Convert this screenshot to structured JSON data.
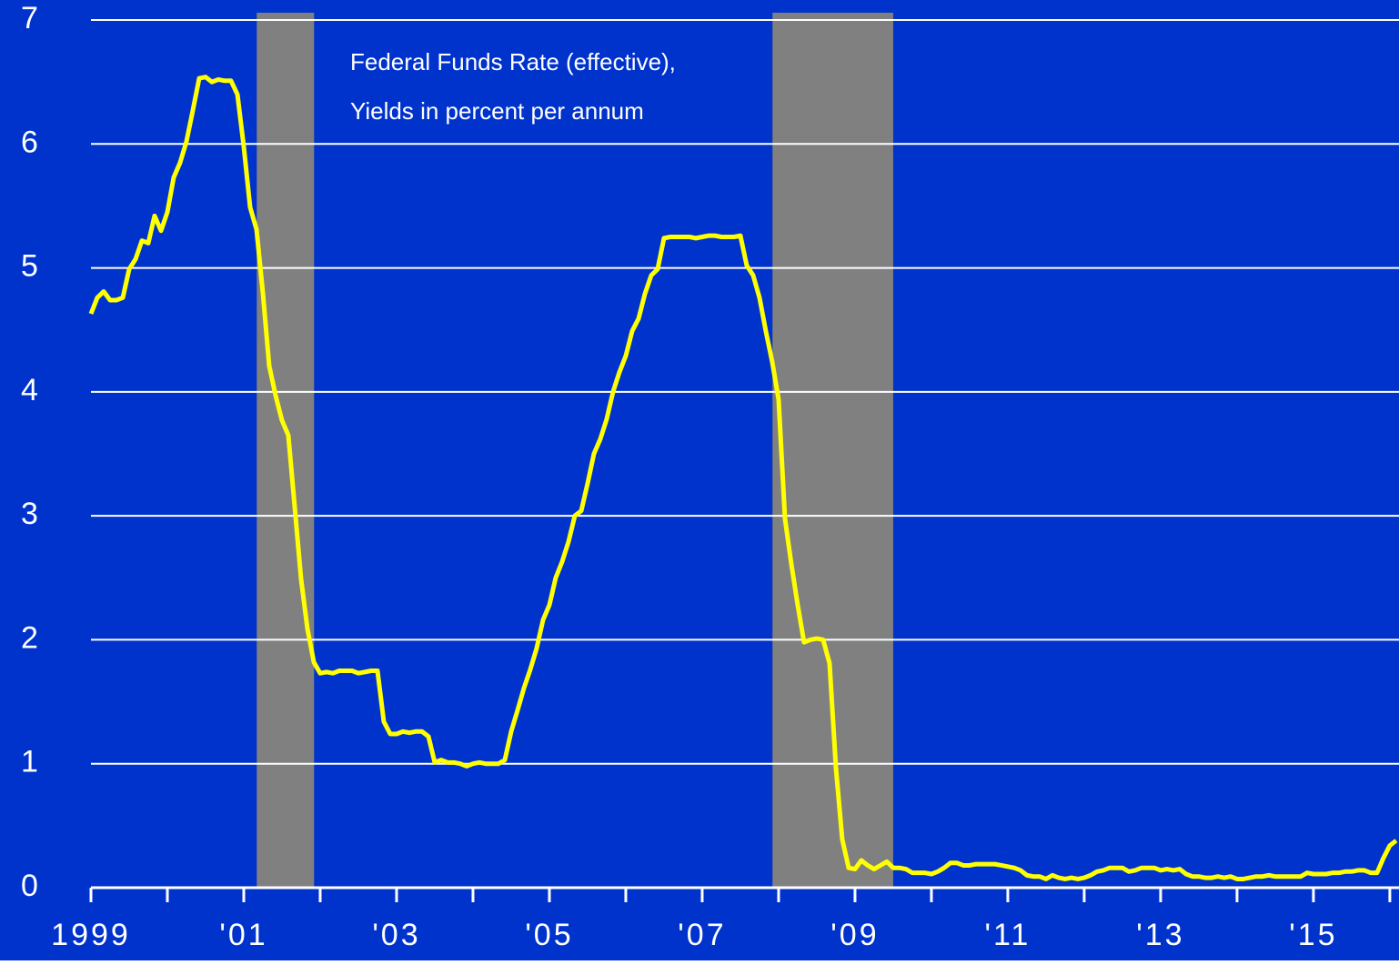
{
  "chart_data": {
    "type": "line",
    "annotations": [
      "Federal Funds Rate (effective),",
      "Yields in percent per annum"
    ],
    "background": "#0033cc",
    "shaded_color": "#808080",
    "shaded_periods": [
      [
        2001.17,
        2001.92
      ],
      [
        2007.92,
        2009.5
      ]
    ],
    "xlim": [
      1999,
      2016.12
    ],
    "ylim": [
      0,
      7
    ],
    "yticks": [
      0,
      1,
      2,
      3,
      4,
      5,
      6,
      7
    ],
    "grid": true,
    "xticks": [
      {
        "value": 1999,
        "label": "1999"
      },
      {
        "value": 2001,
        "label": "'01"
      },
      {
        "value": 2003,
        "label": "'03"
      },
      {
        "value": 2005,
        "label": "'05"
      },
      {
        "value": 2007,
        "label": "'07"
      },
      {
        "value": 2009,
        "label": "'09"
      },
      {
        "value": 2011,
        "label": "'11"
      },
      {
        "value": 2013,
        "label": "'13"
      },
      {
        "value": 2015,
        "label": "'15"
      }
    ],
    "minor_xticks": [
      2000,
      2002,
      2004,
      2006,
      2008,
      2010,
      2012,
      2014,
      2016
    ],
    "x": [
      1999,
      1999.083,
      1999.167,
      1999.25,
      1999.333,
      1999.417,
      1999.5,
      1999.583,
      1999.667,
      1999.75,
      1999.833,
      1999.917,
      2000,
      2000.083,
      2000.167,
      2000.25,
      2000.333,
      2000.417,
      2000.5,
      2000.583,
      2000.667,
      2000.75,
      2000.833,
      2000.917,
      2001,
      2001.083,
      2001.167,
      2001.25,
      2001.333,
      2001.417,
      2001.5,
      2001.583,
      2001.667,
      2001.75,
      2001.833,
      2001.917,
      2002,
      2002.083,
      2002.167,
      2002.25,
      2002.333,
      2002.417,
      2002.5,
      2002.583,
      2002.667,
      2002.75,
      2002.833,
      2002.917,
      2003,
      2003.083,
      2003.167,
      2003.25,
      2003.333,
      2003.417,
      2003.5,
      2003.583,
      2003.667,
      2003.75,
      2003.833,
      2003.917,
      2004,
      2004.083,
      2004.167,
      2004.25,
      2004.333,
      2004.417,
      2004.5,
      2004.583,
      2004.667,
      2004.75,
      2004.833,
      2004.917,
      2005,
      2005.083,
      2005.167,
      2005.25,
      2005.333,
      2005.417,
      2005.5,
      2005.583,
      2005.667,
      2005.75,
      2005.833,
      2005.917,
      2006,
      2006.083,
      2006.167,
      2006.25,
      2006.333,
      2006.417,
      2006.5,
      2006.583,
      2006.667,
      2006.75,
      2006.833,
      2006.917,
      2007,
      2007.083,
      2007.167,
      2007.25,
      2007.333,
      2007.417,
      2007.5,
      2007.583,
      2007.667,
      2007.75,
      2007.833,
      2007.917,
      2008,
      2008.083,
      2008.167,
      2008.25,
      2008.333,
      2008.417,
      2008.5,
      2008.583,
      2008.667,
      2008.75,
      2008.833,
      2008.917,
      2009,
      2009.083,
      2009.167,
      2009.25,
      2009.333,
      2009.417,
      2009.5,
      2009.583,
      2009.667,
      2009.75,
      2009.833,
      2009.917,
      2010,
      2010.083,
      2010.167,
      2010.25,
      2010.333,
      2010.417,
      2010.5,
      2010.583,
      2010.667,
      2010.75,
      2010.833,
      2010.917,
      2011,
      2011.083,
      2011.167,
      2011.25,
      2011.333,
      2011.417,
      2011.5,
      2011.583,
      2011.667,
      2011.75,
      2011.833,
      2011.917,
      2012,
      2012.083,
      2012.167,
      2012.25,
      2012.333,
      2012.417,
      2012.5,
      2012.583,
      2012.667,
      2012.75,
      2012.833,
      2012.917,
      2013,
      2013.083,
      2013.167,
      2013.25,
      2013.333,
      2013.417,
      2013.5,
      2013.583,
      2013.667,
      2013.75,
      2013.833,
      2013.917,
      2014,
      2014.083,
      2014.167,
      2014.25,
      2014.333,
      2014.417,
      2014.5,
      2014.583,
      2014.667,
      2014.75,
      2014.833,
      2014.917,
      2015,
      2015.083,
      2015.167,
      2015.25,
      2015.333,
      2015.417,
      2015.5,
      2015.583,
      2015.667,
      2015.75,
      2015.833,
      2015.917,
      2016,
      2016.083
    ],
    "series": [
      {
        "color": "#ffff00",
        "values": [
          4.63,
          4.76,
          4.81,
          4.74,
          4.74,
          4.76,
          4.99,
          5.07,
          5.22,
          5.2,
          5.42,
          5.3,
          5.45,
          5.73,
          5.85,
          6.02,
          6.27,
          6.53,
          6.54,
          6.5,
          6.52,
          6.51,
          6.51,
          6.4,
          5.98,
          5.49,
          5.31,
          4.8,
          4.21,
          3.97,
          3.77,
          3.65,
          3.07,
          2.49,
          2.09,
          1.82,
          1.73,
          1.74,
          1.73,
          1.75,
          1.75,
          1.75,
          1.73,
          1.74,
          1.75,
          1.75,
          1.34,
          1.24,
          1.24,
          1.26,
          1.25,
          1.26,
          1.26,
          1.22,
          1.01,
          1.03,
          1.01,
          1.01,
          1.0,
          0.98,
          1.0,
          1.01,
          1.0,
          1.0,
          1.0,
          1.03,
          1.26,
          1.43,
          1.61,
          1.76,
          1.93,
          2.16,
          2.28,
          2.5,
          2.63,
          2.79,
          3.0,
          3.04,
          3.26,
          3.5,
          3.62,
          3.78,
          4.0,
          4.16,
          4.29,
          4.49,
          4.59,
          4.79,
          4.94,
          4.99,
          5.24,
          5.25,
          5.25,
          5.25,
          5.25,
          5.24,
          5.25,
          5.26,
          5.26,
          5.25,
          5.25,
          5.25,
          5.26,
          5.02,
          4.94,
          4.76,
          4.49,
          4.24,
          3.94,
          2.98,
          2.61,
          2.28,
          1.98,
          2.0,
          2.01,
          2.0,
          1.81,
          0.97,
          0.39,
          0.16,
          0.15,
          0.22,
          0.18,
          0.15,
          0.18,
          0.21,
          0.16,
          0.16,
          0.15,
          0.12,
          0.12,
          0.12,
          0.11,
          0.13,
          0.16,
          0.2,
          0.2,
          0.18,
          0.18,
          0.19,
          0.19,
          0.19,
          0.19,
          0.18,
          0.17,
          0.16,
          0.14,
          0.1,
          0.09,
          0.09,
          0.07,
          0.1,
          0.08,
          0.07,
          0.08,
          0.07,
          0.08,
          0.1,
          0.13,
          0.14,
          0.16,
          0.16,
          0.16,
          0.13,
          0.14,
          0.16,
          0.16,
          0.16,
          0.14,
          0.15,
          0.14,
          0.15,
          0.11,
          0.09,
          0.09,
          0.08,
          0.08,
          0.09,
          0.08,
          0.09,
          0.07,
          0.07,
          0.08,
          0.09,
          0.09,
          0.1,
          0.09,
          0.09,
          0.09,
          0.09,
          0.09,
          0.12,
          0.11,
          0.11,
          0.11,
          0.12,
          0.12,
          0.13,
          0.13,
          0.14,
          0.14,
          0.12,
          0.12,
          0.24,
          0.34,
          0.38
        ]
      }
    ]
  }
}
